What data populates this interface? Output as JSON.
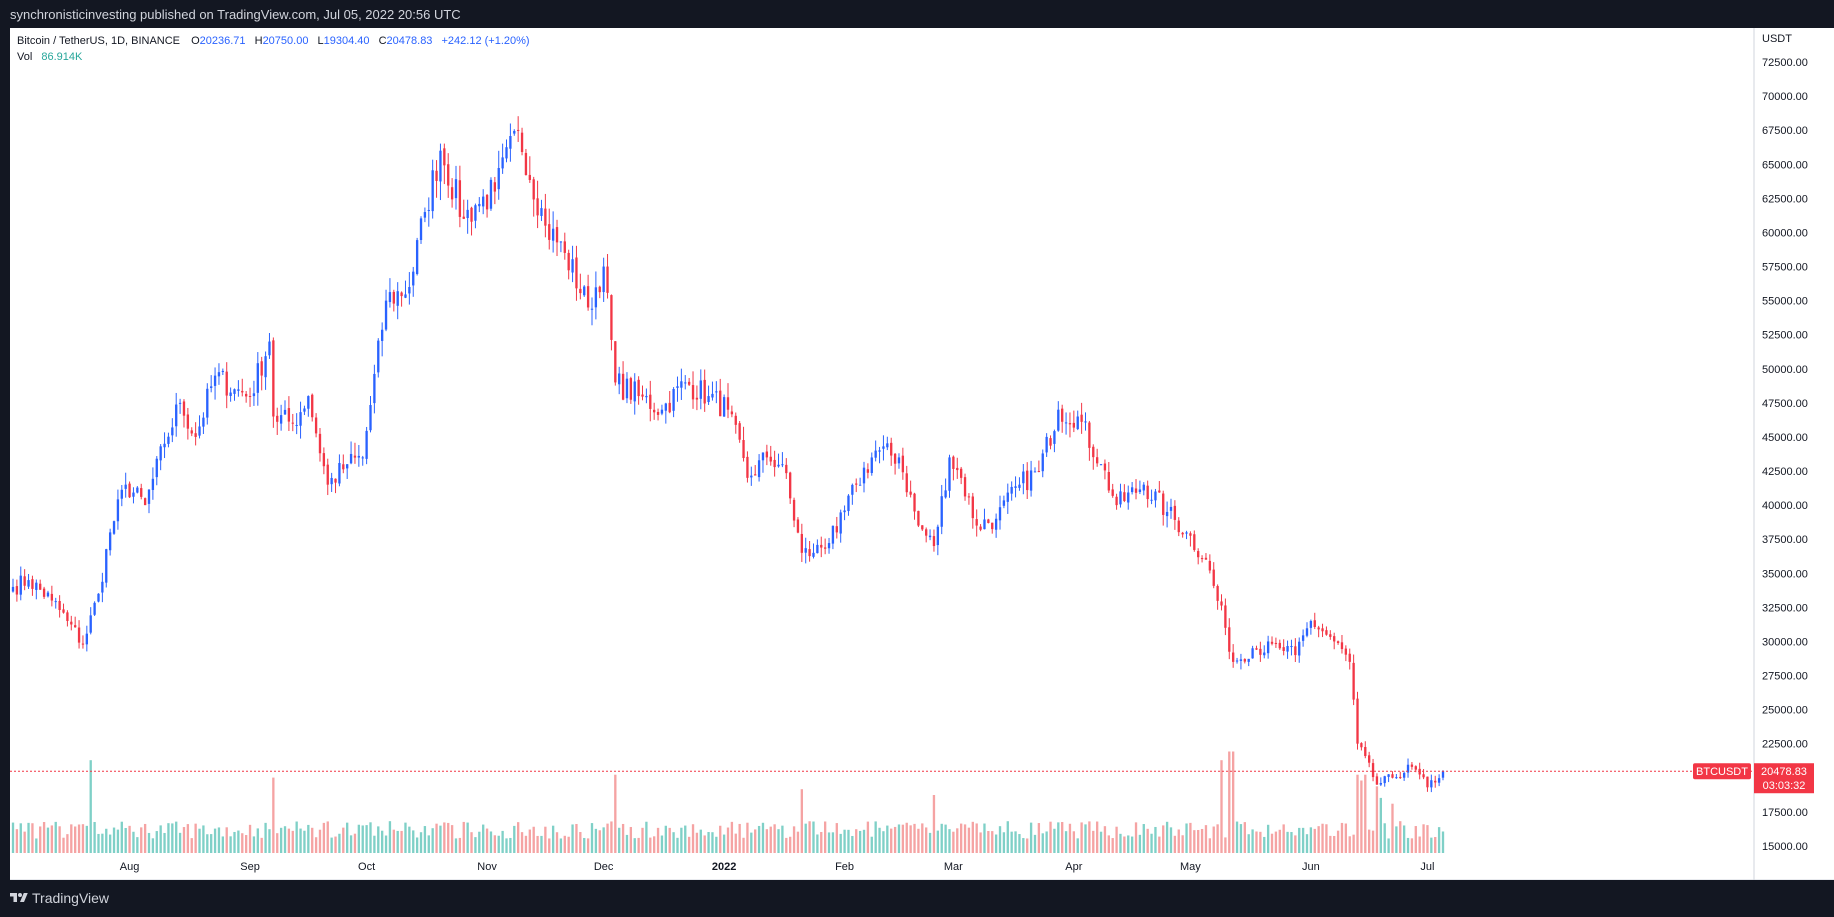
{
  "header": {
    "published": "synchronisticinvesting published on TradingView.com, Jul 05, 2022 20:56 UTC"
  },
  "footer": {
    "brand": "TradingView",
    "logo_icon": "tradingview-logo-icon"
  },
  "legend": {
    "symbol": "Bitcoin / TetherUS, 1D, BINANCE",
    "o_label": "O",
    "o": "20236.71",
    "h_label": "H",
    "h": "20750.00",
    "l_label": "L",
    "l": "19304.40",
    "c_label": "C",
    "c": "20478.83",
    "change": "+242.12 (+1.20%)",
    "vol_label": "Vol",
    "vol": "86.914K"
  },
  "price_badge": {
    "ticker": "BTCUSDT",
    "price": "20478.83",
    "countdown": "03:03:32"
  },
  "colors": {
    "up": "#2962ff",
    "down": "#f23645",
    "vol_up": "#7fd0c7",
    "vol_down": "#f5a3a3",
    "accent": "#f23645"
  },
  "chart_data": {
    "type": "candlestick",
    "title": "Bitcoin / TetherUS, 1D, BINANCE",
    "currency": "USDT",
    "ylim": [
      12500,
      75000
    ],
    "y_ticks": [
      "72500.00",
      "70000.00",
      "67500.00",
      "65000.00",
      "62500.00",
      "60000.00",
      "57500.00",
      "55000.00",
      "52500.00",
      "50000.00",
      "47500.00",
      "45000.00",
      "42500.00",
      "40000.00",
      "37500.00",
      "35000.00",
      "32500.00",
      "30000.00",
      "27500.00",
      "25000.00",
      "22500.00",
      "17500.00",
      "15000.00"
    ],
    "x_ticks": [
      "Aug",
      "Sep",
      "Oct",
      "Nov",
      "Dec",
      "2022",
      "Feb",
      "Mar",
      "Apr",
      "May",
      "Jun",
      "Jul"
    ],
    "x_tick_dates": [
      "2021-08-01",
      "2021-09-01",
      "2021-10-01",
      "2021-11-01",
      "2021-12-01",
      "2022-01-01",
      "2022-02-01",
      "2022-03-01",
      "2022-04-01",
      "2022-05-01",
      "2022-06-01",
      "2022-07-01"
    ],
    "start_date": "2021-07-02",
    "end_date": "2022-07-05",
    "last_close": 20478.83,
    "anchors": [
      [
        "2021-07-02",
        34000
      ],
      [
        "2021-07-06",
        34500
      ],
      [
        "2021-07-12",
        33000
      ],
      [
        "2021-07-16",
        31500
      ],
      [
        "2021-07-20",
        29800
      ],
      [
        "2021-07-24",
        33500
      ],
      [
        "2021-07-27",
        38000
      ],
      [
        "2021-07-31",
        41500
      ],
      [
        "2021-08-05",
        40000
      ],
      [
        "2021-08-10",
        44500
      ],
      [
        "2021-08-14",
        47500
      ],
      [
        "2021-08-18",
        45000
      ],
      [
        "2021-08-23",
        49500
      ],
      [
        "2021-08-28",
        48500
      ],
      [
        "2021-09-01",
        48000
      ],
      [
        "2021-09-06",
        52000
      ],
      [
        "2021-09-07",
        46500
      ],
      [
        "2021-09-12",
        46000
      ],
      [
        "2021-09-16",
        48000
      ],
      [
        "2021-09-21",
        41500
      ],
      [
        "2021-09-26",
        43000
      ],
      [
        "2021-09-30",
        43500
      ],
      [
        "2021-10-06",
        55000
      ],
      [
        "2021-10-12",
        56000
      ],
      [
        "2021-10-16",
        61500
      ],
      [
        "2021-10-20",
        66000
      ],
      [
        "2021-10-26",
        61000
      ],
      [
        "2021-10-29",
        62000
      ],
      [
        "2021-11-03",
        63000
      ],
      [
        "2021-11-09",
        67500
      ],
      [
        "2021-11-16",
        60500
      ],
      [
        "2021-11-21",
        58500
      ],
      [
        "2021-11-27",
        54500
      ],
      [
        "2021-12-01",
        57500
      ],
      [
        "2021-12-04",
        49000
      ],
      [
        "2021-12-10",
        48000
      ],
      [
        "2021-12-16",
        47000
      ],
      [
        "2021-12-22",
        49000
      ],
      [
        "2021-12-28",
        48000
      ],
      [
        "2022-01-02",
        47000
      ],
      [
        "2022-01-07",
        42000
      ],
      [
        "2022-01-12",
        43500
      ],
      [
        "2022-01-16",
        43000
      ],
      [
        "2022-01-21",
        36500
      ],
      [
        "2022-01-24",
        36500
      ],
      [
        "2022-01-30",
        38000
      ],
      [
        "2022-02-04",
        41500
      ],
      [
        "2022-02-09",
        44000
      ],
      [
        "2022-02-15",
        43500
      ],
      [
        "2022-02-20",
        38500
      ],
      [
        "2022-02-24",
        37000
      ],
      [
        "2022-02-28",
        43500
      ],
      [
        "2022-03-03",
        42000
      ],
      [
        "2022-03-07",
        38500
      ],
      [
        "2022-03-12",
        39000
      ],
      [
        "2022-03-18",
        41500
      ],
      [
        "2022-03-23",
        42500
      ],
      [
        "2022-03-28",
        47000
      ],
      [
        "2022-04-02",
        46500
      ],
      [
        "2022-04-08",
        43000
      ],
      [
        "2022-04-12",
        40000
      ],
      [
        "2022-04-19",
        41500
      ],
      [
        "2022-04-25",
        39500
      ],
      [
        "2022-04-30",
        38000
      ],
      [
        "2022-05-05",
        36000
      ],
      [
        "2022-05-10",
        31000
      ],
      [
        "2022-05-12",
        28500
      ],
      [
        "2022-05-17",
        29500
      ],
      [
        "2022-05-24",
        29500
      ],
      [
        "2022-05-28",
        29000
      ],
      [
        "2022-06-01",
        31500
      ],
      [
        "2022-06-07",
        30000
      ],
      [
        "2022-06-11",
        28500
      ],
      [
        "2022-06-13",
        22500
      ],
      [
        "2022-06-18",
        19500
      ],
      [
        "2022-06-22",
        20000
      ],
      [
        "2022-06-27",
        20800
      ],
      [
        "2022-07-01",
        19300
      ],
      [
        "2022-07-05",
        20478.83
      ]
    ],
    "volume_panel": {
      "label": "Vol",
      "last": "86.914K"
    },
    "volume_spikes": [
      [
        "2021-07-22",
        1.6
      ],
      [
        "2021-09-07",
        1.3
      ],
      [
        "2021-12-04",
        1.35
      ],
      [
        "2022-01-21",
        1.1
      ],
      [
        "2022-02-24",
        1.0
      ],
      [
        "2022-05-09",
        1.6
      ],
      [
        "2022-05-11",
        1.75
      ],
      [
        "2022-05-12",
        1.75
      ],
      [
        "2022-06-13",
        1.35
      ],
      [
        "2022-06-14",
        1.25
      ],
      [
        "2022-06-15",
        1.35
      ],
      [
        "2022-06-18",
        1.15
      ],
      [
        "2022-06-19",
        0.95
      ],
      [
        "2022-06-22",
        0.85
      ]
    ]
  }
}
